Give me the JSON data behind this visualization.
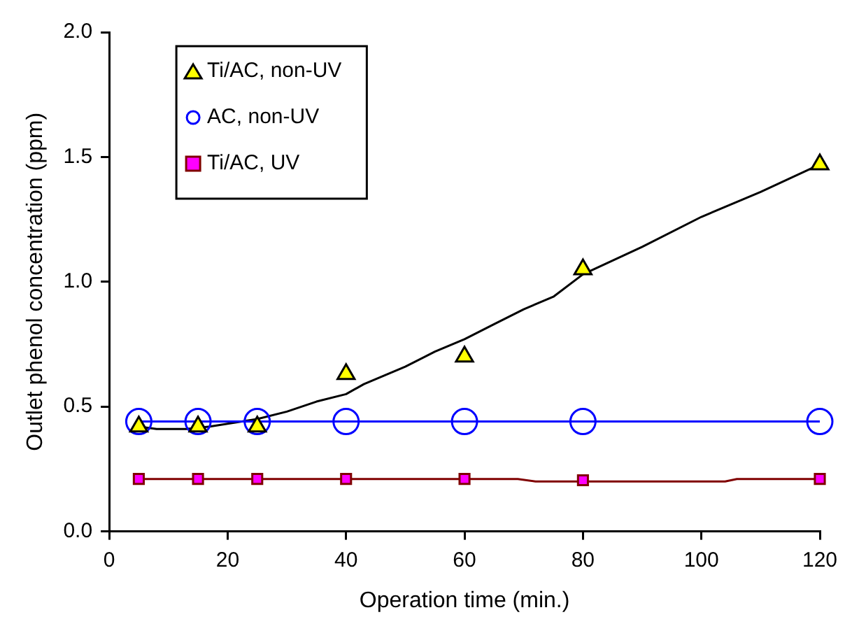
{
  "chart_data": {
    "type": "scatter",
    "xlabel": "Operation time (min.)",
    "ylabel": "Outlet phenol concentration (ppm)",
    "xlim": [
      0,
      120
    ],
    "xticks": [
      0,
      20,
      40,
      60,
      80,
      100,
      120
    ],
    "ylim": [
      0,
      2
    ],
    "yticks": [
      {
        "value": 0,
        "label": "0.0"
      },
      {
        "value": 0.5,
        "label": "0.5"
      },
      {
        "value": 1,
        "label": "1.0"
      },
      {
        "value": 1.5,
        "label": "1.5"
      },
      {
        "value": 2,
        "label": "2.0"
      }
    ],
    "grid": false,
    "legend": "top left",
    "series": [
      {
        "name": "Ti/AC, non-UV",
        "type": "scatter",
        "marker": "triangle",
        "color": "#ffff00",
        "x": [
          5,
          15,
          25,
          40,
          60,
          80,
          120
        ],
        "values": [
          0.42,
          0.42,
          0.42,
          0.63,
          0.7,
          1.05,
          1.47
        ]
      },
      {
        "name": "AC, non-UV",
        "type": "line",
        "marker": "circle",
        "line_style": "solid",
        "color": "#0000ff",
        "x": [
          5,
          15,
          25,
          40,
          60,
          80,
          120
        ],
        "values": [
          0.44,
          0.44,
          0.44,
          0.44,
          0.44,
          0.44,
          0.44
        ]
      },
      {
        "name": "Ti/AC, UV",
        "type": "scatter",
        "marker": "square",
        "color": "#ff00ff",
        "x": [
          5,
          15,
          25,
          40,
          60,
          80,
          120
        ],
        "values": [
          0.21,
          0.21,
          0.21,
          0.21,
          0.21,
          0.205,
          0.21
        ]
      },
      {
        "type": "line",
        "marker": "none",
        "line_style": "solid",
        "color": "#000000",
        "x": [
          5,
          8,
          13,
          17,
          25,
          30,
          35,
          40,
          43,
          50,
          55,
          60,
          65,
          70,
          75,
          80,
          90,
          100,
          110,
          120
        ],
        "values": [
          0.42,
          0.41,
          0.41,
          0.42,
          0.45,
          0.48,
          0.52,
          0.55,
          0.59,
          0.66,
          0.72,
          0.77,
          0.83,
          0.89,
          0.94,
          1.03,
          1.14,
          1.26,
          1.36,
          1.47
        ]
      },
      {
        "type": "line",
        "marker": "none",
        "line_style": "solid",
        "color": "#800000",
        "x": [
          5,
          69,
          72,
          104,
          106,
          120
        ],
        "values": [
          0.21,
          0.21,
          0.2,
          0.2,
          0.21,
          0.21
        ]
      }
    ]
  }
}
